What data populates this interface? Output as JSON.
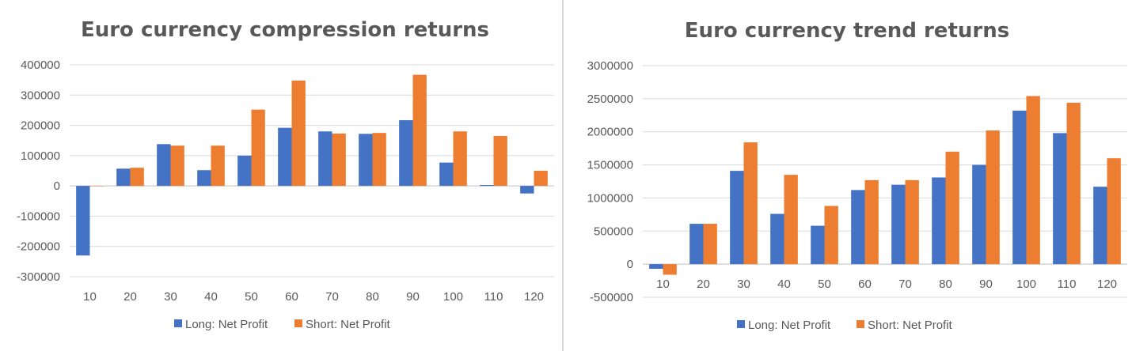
{
  "chart_data": [
    {
      "type": "bar",
      "title": "Euro currency compression returns",
      "xlabel": "",
      "ylabel": "",
      "categories": [
        "10",
        "20",
        "30",
        "40",
        "50",
        "60",
        "70",
        "80",
        "90",
        "100",
        "110",
        "120"
      ],
      "series": [
        {
          "name": "Long: Net Profit",
          "color": "#4472c4",
          "values": [
            -230000,
            57000,
            138000,
            52000,
            100000,
            192000,
            180000,
            172000,
            217000,
            77000,
            3000,
            -25000
          ]
        },
        {
          "name": "Short: Net Profit",
          "color": "#ed7d31",
          "values": [
            0,
            60000,
            133000,
            133000,
            252000,
            348000,
            173000,
            175000,
            367000,
            180000,
            165000,
            50000
          ]
        }
      ],
      "yticks": [
        "400000",
        "300000",
        "200000",
        "100000",
        "0",
        "-100000",
        "-200000",
        "-300000"
      ],
      "ylim": [
        -300000,
        400000
      ],
      "grid": true,
      "legend": "bottom"
    },
    {
      "type": "bar",
      "title": "Euro currency trend returns",
      "xlabel": "",
      "ylabel": "",
      "categories": [
        "10",
        "20",
        "30",
        "40",
        "50",
        "60",
        "70",
        "80",
        "90",
        "100",
        "110",
        "120"
      ],
      "series": [
        {
          "name": "Long: Net Profit",
          "color": "#4472c4",
          "values": [
            -70000,
            610000,
            1410000,
            760000,
            580000,
            1120000,
            1200000,
            1310000,
            1500000,
            2320000,
            1980000,
            1170000
          ]
        },
        {
          "name": "Short: Net Profit",
          "color": "#ed7d31",
          "values": [
            -160000,
            610000,
            1840000,
            1350000,
            880000,
            1270000,
            1270000,
            1700000,
            2020000,
            2540000,
            2440000,
            1600000
          ]
        }
      ],
      "yticks": [
        "3000000",
        "2500000",
        "2000000",
        "1500000",
        "1000000",
        "500000",
        "0",
        "-500000"
      ],
      "ylim": [
        -500000,
        3000000
      ],
      "grid": true,
      "legend": "bottom"
    }
  ]
}
